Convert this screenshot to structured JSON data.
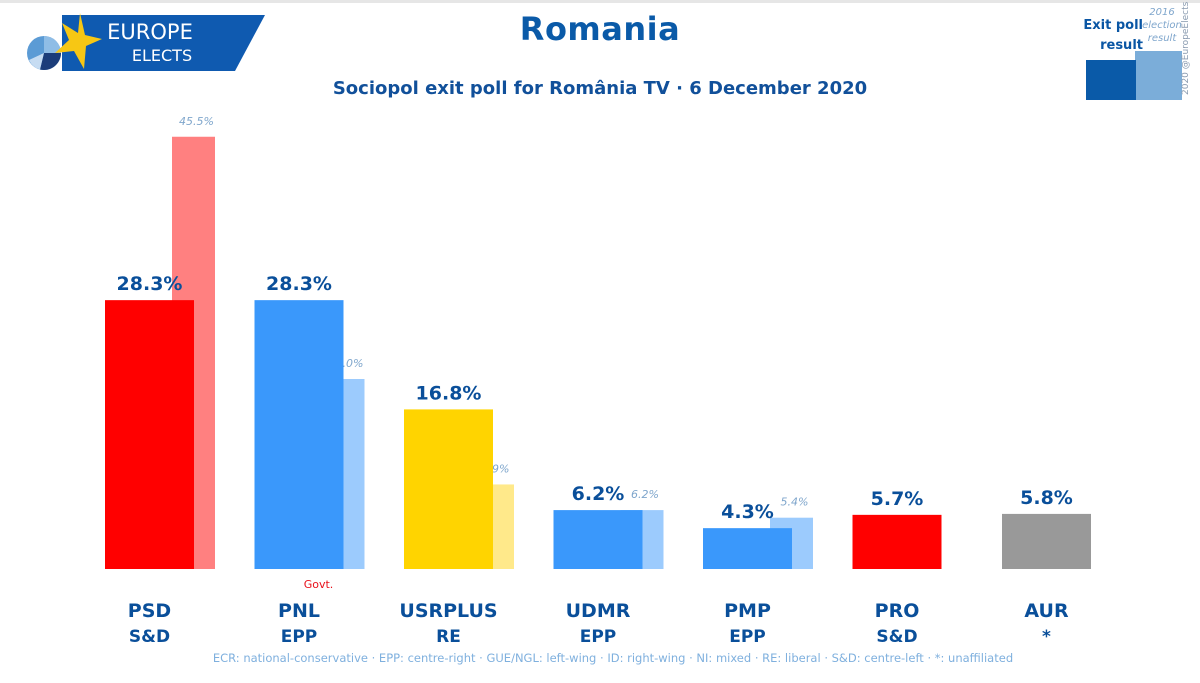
{
  "header": {
    "brand_line1": "EUROPE",
    "brand_line2": "ELECTS",
    "title": "Romania",
    "subtitle": "Sociopol exit poll for România TV · 6 December 2020"
  },
  "legend": {
    "current_label_line1": "Exit poll",
    "current_label_line2": "result",
    "previous_label_line1": "2016",
    "previous_label_line2": "election",
    "previous_label_line3": "result",
    "credit": "2020 @EuropeElects",
    "current_color": "#0a5aa8",
    "previous_color": "#7badd9"
  },
  "footnote": "ECR: national-conservative · EPP: centre-right · GUE/NGL: left-wing · ID: right-wing · NI: mixed · RE: liberal · S&D: centre-left · *: unaffiliated",
  "chart_data": {
    "type": "bar",
    "title": "Romania",
    "subtitle": "Sociopol exit poll for România TV · 6 December 2020",
    "xlabel": "",
    "ylabel": "",
    "ylim": [
      0,
      50
    ],
    "grid": false,
    "legend_position": "top-right",
    "categories": [
      "PSD",
      "PNL",
      "USRPLUS",
      "UDMR",
      "PMP",
      "PRO",
      "AUR"
    ],
    "groups": [
      "S&D",
      "EPP",
      "RE",
      "EPP",
      "EPP",
      "S&D",
      "*"
    ],
    "annotations": [
      {
        "category": "PNL",
        "text": "Govt."
      }
    ],
    "series": [
      {
        "name": "Exit poll result",
        "values": [
          28.3,
          28.3,
          16.8,
          6.2,
          4.3,
          5.7,
          5.8
        ],
        "labels": [
          "28.3%",
          "28.3%",
          "16.8%",
          "6.2%",
          "4.3%",
          "5.7%",
          "5.8%"
        ],
        "colors": [
          "#ff0000",
          "#3a98fb",
          "#ffd400",
          "#3a98fb",
          "#3a98fb",
          "#ff0000",
          "#999999"
        ]
      },
      {
        "name": "2016 election result",
        "values": [
          45.5,
          20.0,
          8.9,
          6.2,
          5.4,
          null,
          null
        ],
        "labels": [
          "45.5%",
          "20.0%",
          "8.9%",
          "6.2%",
          "5.4%",
          "",
          ""
        ],
        "colors": [
          "#ff8080",
          "#9ccbfd",
          "#ffe98a",
          "#9ccbfd",
          "#9ccbfd",
          null,
          null
        ]
      }
    ]
  }
}
